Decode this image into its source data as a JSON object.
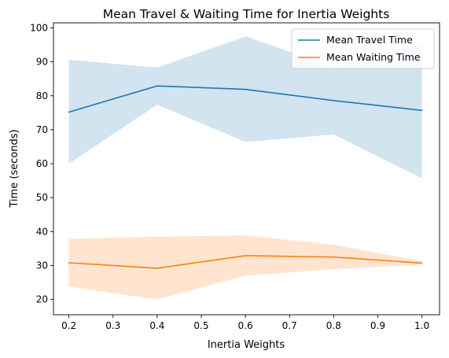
{
  "chart_data": {
    "type": "line",
    "title": "Mean Travel & Waiting Time for Inertia Weights",
    "xlabel": "Inertia Weights",
    "ylabel": "Time (seconds)",
    "x": [
      0.2,
      0.4,
      0.6,
      0.8,
      1.0
    ],
    "xlim": [
      0.165,
      1.04
    ],
    "ylim": [
      15.5,
      101.5
    ],
    "xticks": [
      "0.2",
      "0.3",
      "0.4",
      "0.5",
      "0.6",
      "0.7",
      "0.8",
      "0.9",
      "1.0"
    ],
    "yticks": [
      "20",
      "30",
      "40",
      "50",
      "60",
      "70",
      "80",
      "90",
      "100"
    ],
    "grid": false,
    "legend_position": "top-right",
    "series": [
      {
        "name": "Mean Travel Time",
        "color": "#1f77b4",
        "band_color": "#1f77b4",
        "values": [
          75.2,
          82.9,
          81.9,
          78.6,
          75.7
        ],
        "lower": [
          60.0,
          77.4,
          66.4,
          68.6,
          55.7
        ],
        "upper": [
          90.6,
          88.3,
          97.5,
          88.5,
          95.6
        ]
      },
      {
        "name": "Mean Waiting Time",
        "color": "#ff7f0e",
        "band_color": "#ff7f0e",
        "values": [
          30.8,
          29.2,
          32.9,
          32.5,
          30.7
        ],
        "lower": [
          23.8,
          20.0,
          27.0,
          28.9,
          30.2
        ],
        "upper": [
          37.8,
          38.5,
          38.9,
          36.1,
          31.3
        ]
      }
    ]
  }
}
